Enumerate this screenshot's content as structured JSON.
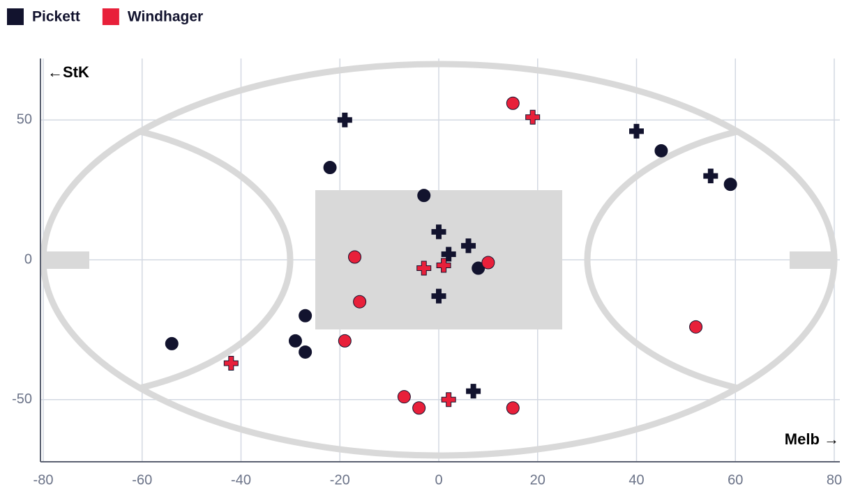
{
  "chart_data": {
    "type": "scatter",
    "annotations": [
      "←StK",
      "Melb →"
    ],
    "xlim": [
      -80,
      80
    ],
    "ylim": [
      -72,
      72
    ],
    "xticks": [
      -80,
      -60,
      -40,
      -20,
      0,
      20,
      40,
      60,
      80
    ],
    "yticks": [
      -50,
      0,
      50
    ],
    "grid": true,
    "series": [
      {
        "name": "Pickett",
        "color": "#12132e",
        "x": [
          -19,
          0,
          2,
          6,
          0,
          7,
          40,
          55,
          -22,
          -3,
          8,
          -27,
          -29,
          -27,
          -54,
          45,
          59
        ],
        "y": [
          50,
          10,
          2,
          5,
          -13,
          -47,
          46,
          30,
          33,
          23,
          -3,
          -20,
          -29,
          -33,
          -30,
          39,
          27
        ],
        "markers": [
          "cross",
          "cross",
          "cross",
          "cross",
          "cross",
          "cross",
          "cross",
          "cross",
          "circle",
          "circle",
          "circle",
          "circle",
          "circle",
          "circle",
          "circle",
          "circle",
          "circle"
        ]
      },
      {
        "name": "Windhager",
        "color": "#e8203a",
        "x": [
          15,
          -17,
          10,
          -16,
          -19,
          -7,
          -4,
          15,
          52,
          19,
          -3,
          1,
          -42,
          2
        ],
        "y": [
          56,
          1,
          -1,
          -15,
          -29,
          -49,
          -53,
          -53,
          -24,
          51,
          -3,
          -2,
          -37,
          -50
        ],
        "markers": [
          "circle",
          "circle",
          "circle",
          "circle",
          "circle",
          "circle",
          "circle",
          "circle",
          "circle",
          "cross",
          "cross",
          "cross",
          "cross",
          "cross"
        ]
      }
    ]
  }
}
